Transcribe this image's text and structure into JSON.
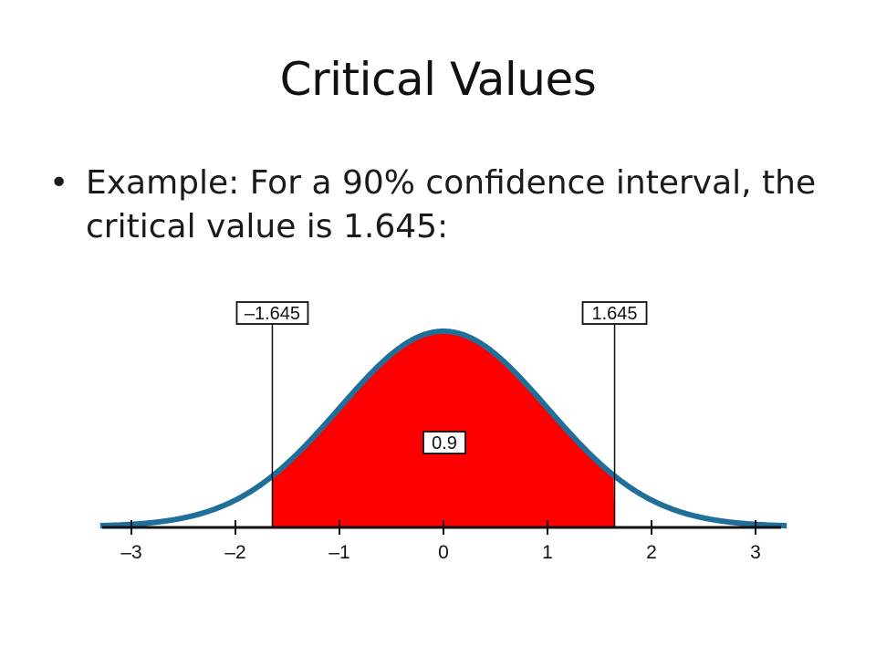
{
  "slide": {
    "title": "Critical Values",
    "bullet": "•",
    "bullet_text": "Example: For a 90% confidence interval, the critical value is 1.645:"
  },
  "diagram": {
    "x_ticks": [
      {
        "value": -3,
        "label": "–3"
      },
      {
        "value": -2,
        "label": "–2"
      },
      {
        "value": -1,
        "label": "–1"
      },
      {
        "value": 0,
        "label": "0"
      },
      {
        "value": 1,
        "label": "1"
      },
      {
        "value": 2,
        "label": "2"
      },
      {
        "value": 3,
        "label": "3"
      }
    ],
    "x_range": [
      -3.3,
      3.3
    ],
    "left_critical": {
      "value": -1.645,
      "label": "–1.645"
    },
    "right_critical": {
      "value": 1.645,
      "label": "1.645"
    },
    "shaded_area": {
      "value": 0.9,
      "label": "0.9"
    },
    "colors": {
      "curve": "#1f6f9a",
      "fill": "#ff0000",
      "axis": "#111111"
    }
  }
}
